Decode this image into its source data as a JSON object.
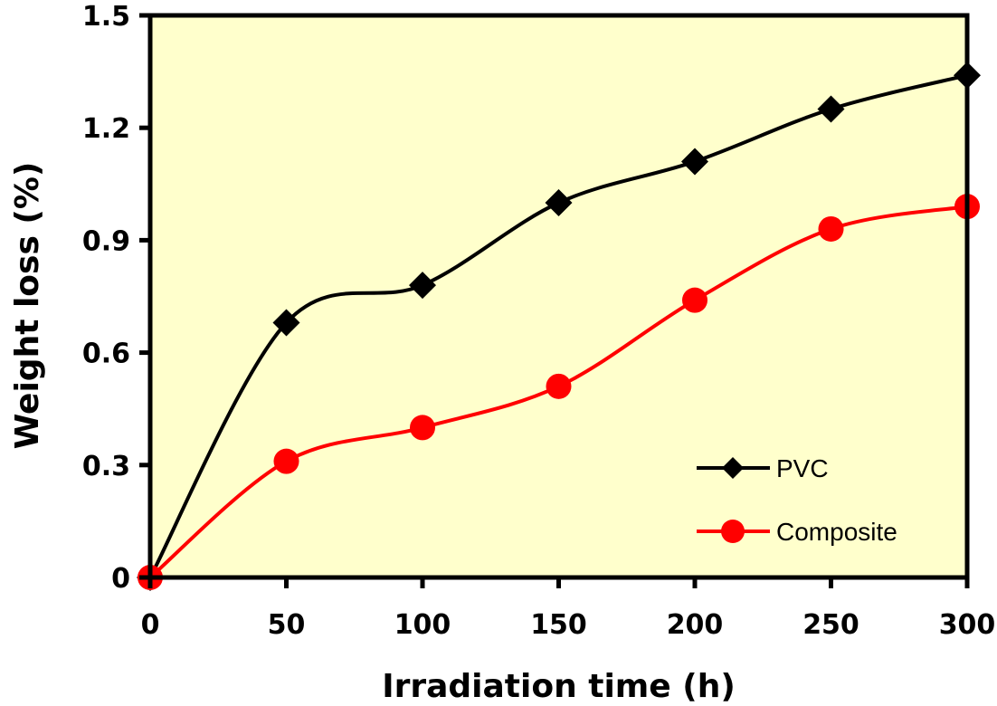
{
  "chart_data": {
    "type": "line",
    "title": "",
    "xlabel": "Irradiation time (h)",
    "ylabel": "Weight loss (%)",
    "x": [
      0,
      50,
      100,
      150,
      200,
      250,
      300
    ],
    "xlim": [
      0,
      300
    ],
    "ylim": [
      0,
      1.5
    ],
    "xticks": [
      0,
      50,
      100,
      150,
      200,
      250,
      300
    ],
    "xtick_labels": [
      "0",
      "50",
      "100",
      "150",
      "200",
      "250",
      "300"
    ],
    "yticks": [
      0,
      0.3,
      0.6,
      0.9,
      1.2,
      1.5
    ],
    "ytick_labels": [
      "0",
      "0.3",
      "0.6",
      "0.9",
      "1.2",
      "1.5"
    ],
    "grid": false,
    "smoothed": true,
    "plot_background": "#FFFFCC",
    "legend_position": "bottom-right",
    "series": [
      {
        "name": "PVC",
        "marker": "diamond",
        "color": "#000000",
        "values": [
          0,
          0.68,
          0.78,
          1.0,
          1.11,
          1.25,
          1.34
        ]
      },
      {
        "name": "Composite",
        "marker": "circle",
        "color": "#FF0000",
        "values": [
          0,
          0.31,
          0.4,
          0.51,
          0.74,
          0.93,
          0.99
        ]
      }
    ]
  }
}
